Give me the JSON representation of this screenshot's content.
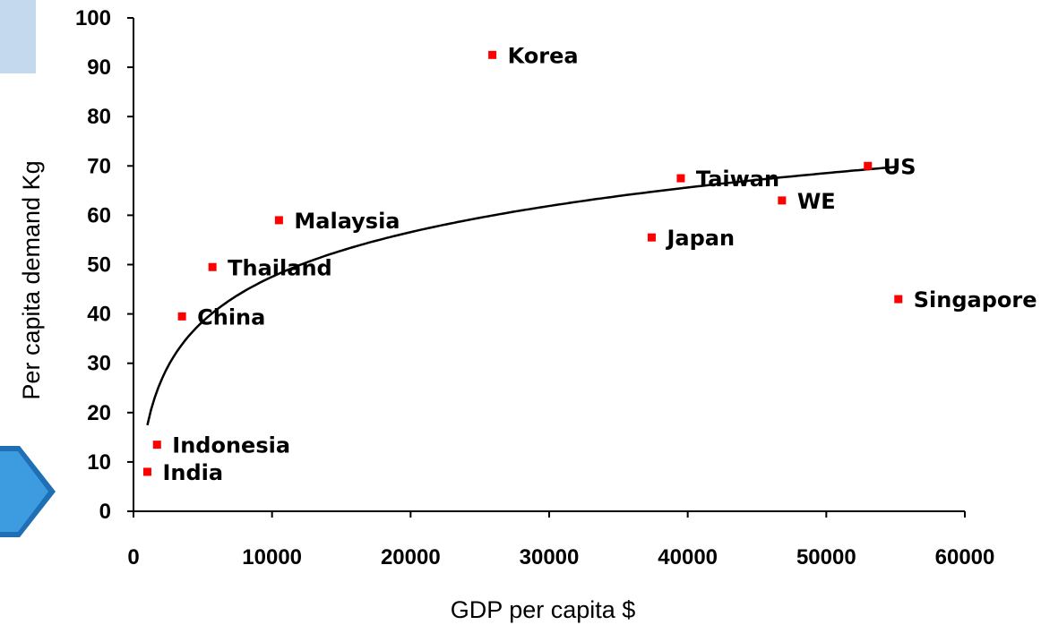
{
  "chart_data": {
    "type": "scatter",
    "xlabel": "GDP per capita $",
    "ylabel": "Per capita demand Kg",
    "xlim": [
      0,
      60000
    ],
    "ylim": [
      0,
      100
    ],
    "x_ticks": [
      0,
      10000,
      20000,
      30000,
      40000,
      50000,
      60000
    ],
    "y_ticks": [
      0,
      10,
      20,
      30,
      40,
      50,
      60,
      70,
      80,
      90,
      100
    ],
    "grid": false,
    "point_color": "#ff0000",
    "points": [
      {
        "label": "India",
        "x": 1000,
        "y": 8
      },
      {
        "label": "Indonesia",
        "x": 1700,
        "y": 13.5
      },
      {
        "label": "China",
        "x": 3500,
        "y": 39.5
      },
      {
        "label": "Thailand",
        "x": 5700,
        "y": 49.5
      },
      {
        "label": "Malaysia",
        "x": 10500,
        "y": 59
      },
      {
        "label": "Korea",
        "x": 25900,
        "y": 92.5
      },
      {
        "label": "Japan",
        "x": 37400,
        "y": 55.5
      },
      {
        "label": "Taiwan",
        "x": 39500,
        "y": 67.5
      },
      {
        "label": "WE",
        "x": 46800,
        "y": 63
      },
      {
        "label": "US",
        "x": 53000,
        "y": 70
      },
      {
        "label": "Singapore",
        "x": 55200,
        "y": 43
      }
    ],
    "trendline": {
      "type": "logarithmic",
      "x_start": 1000,
      "x_end": 55000,
      "color": "#000000"
    }
  }
}
